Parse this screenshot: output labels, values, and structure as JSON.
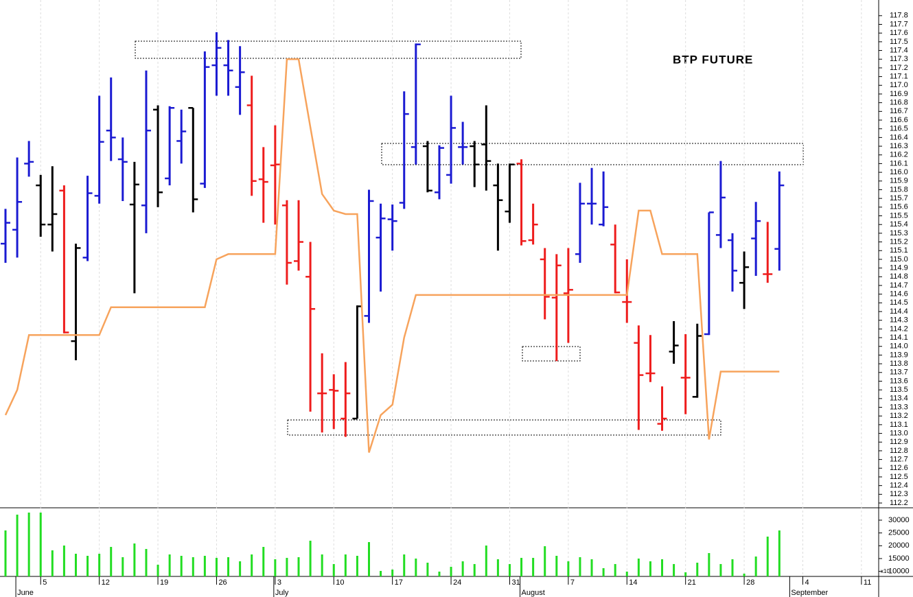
{
  "chart_data": [
    {
      "type": "ohlc",
      "title": "BTP FUTURE",
      "open": [
        115.18,
        115.34,
        116.1,
        115.85,
        115.4,
        115.79,
        114.06,
        115.02,
        115.73,
        116.48,
        116.15,
        115.63,
        115.62,
        116.72,
        115.93,
        116.36,
        116.74,
        115.87,
        117.23,
        117.23,
        116.98,
        116.77,
        115.92,
        116.08,
        115.62,
        114.98,
        114.8,
        113.46,
        113.5,
        113.17,
        113.17,
        114.35,
        115.25,
        115.46,
        115.65,
        116.29,
        116.3,
        115.77,
        115.97,
        116.29,
        116.3,
        116.32,
        115.85,
        115.55,
        116.1,
        115.22,
        115.0,
        114.56,
        114.61,
        115.06,
        115.64,
        115.4,
        115.17,
        114.51,
        114.04,
        113.69,
        113.11,
        113.94,
        113.64,
        113.42,
        114.14,
        115.28,
        115.22,
        114.73,
        115.24,
        114.83,
        115.12
      ],
      "high": [
        115.58,
        116.17,
        116.36,
        115.97,
        116.07,
        115.85,
        115.18,
        115.96,
        116.88,
        117.09,
        116.4,
        116.12,
        117.17,
        116.77,
        116.76,
        116.72,
        116.74,
        117.39,
        117.61,
        117.52,
        117.45,
        117.11,
        116.29,
        116.54,
        115.68,
        115.68,
        115.2,
        113.92,
        113.68,
        113.82,
        114.47,
        115.8,
        115.64,
        115.63,
        116.93,
        117.48,
        116.36,
        116.31,
        116.88,
        116.58,
        116.36,
        116.77,
        116.1,
        116.1,
        116.15,
        115.64,
        115.13,
        115.06,
        115.13,
        115.88,
        116.05,
        116.01,
        115.4,
        115.0,
        114.24,
        114.13,
        113.54,
        114.29,
        114.14,
        114.26,
        115.54,
        116.13,
        115.3,
        115.09,
        115.66,
        115.43,
        116.01
      ],
      "low": [
        114.96,
        115.02,
        115.95,
        115.26,
        115.09,
        114.15,
        113.84,
        114.98,
        115.64,
        116.13,
        115.67,
        114.61,
        115.3,
        115.6,
        115.85,
        116.1,
        115.54,
        115.82,
        116.88,
        116.88,
        116.66,
        115.73,
        115.42,
        115.4,
        114.71,
        114.87,
        113.25,
        113.01,
        113.05,
        112.96,
        113.17,
        114.27,
        114.63,
        115.1,
        115.58,
        116.09,
        115.77,
        115.69,
        115.87,
        116.09,
        115.83,
        115.79,
        115.1,
        115.42,
        115.16,
        115.17,
        114.31,
        113.83,
        114.04,
        114.96,
        115.4,
        115.38,
        114.61,
        114.27,
        113.04,
        113.59,
        113.03,
        113.8,
        113.22,
        113.41,
        114.13,
        115.13,
        114.63,
        114.43,
        114.81,
        114.73,
        114.87
      ],
      "close": [
        115.42,
        115.66,
        116.12,
        115.4,
        115.52,
        114.16,
        115.13,
        115.76,
        116.35,
        116.4,
        116.12,
        115.86,
        116.48,
        115.77,
        116.74,
        116.47,
        115.69,
        117.21,
        117.43,
        117.17,
        117.15,
        115.9,
        115.89,
        116.09,
        114.96,
        115.2,
        114.43,
        113.46,
        113.49,
        113.46,
        114.46,
        115.67,
        115.47,
        115.44,
        116.67,
        117.47,
        115.79,
        116.28,
        116.51,
        116.29,
        116.09,
        116.13,
        115.68,
        116.09,
        115.21,
        115.4,
        114.57,
        114.93,
        114.65,
        115.64,
        115.64,
        115.6,
        114.62,
        114.51,
        113.67,
        113.69,
        113.17,
        114.01,
        113.64,
        114.12,
        115.54,
        115.71,
        114.87,
        114.91,
        115.44,
        114.83,
        115.85
      ],
      "colors": [
        "#1a1ad2",
        "#1a1ad2",
        "#1a1ad2",
        "#000000",
        "#000000",
        "#ee1c1c",
        "#000000",
        "#1a1ad2",
        "#1a1ad2",
        "#1a1ad2",
        "#1a1ad2",
        "#000000",
        "#1a1ad2",
        "#000000",
        "#1a1ad2",
        "#1a1ad2",
        "#000000",
        "#1a1ad2",
        "#1a1ad2",
        "#1a1ad2",
        "#1a1ad2",
        "#ee1c1c",
        "#ee1c1c",
        "#ee1c1c",
        "#ee1c1c",
        "#ee1c1c",
        "#ee1c1c",
        "#ee1c1c",
        "#ee1c1c",
        "#ee1c1c",
        "#000000",
        "#1a1ad2",
        "#1a1ad2",
        "#1a1ad2",
        "#1a1ad2",
        "#1a1ad2",
        "#000000",
        "#1a1ad2",
        "#1a1ad2",
        "#1a1ad2",
        "#000000",
        "#000000",
        "#000000",
        "#000000",
        "#ee1c1c",
        "#ee1c1c",
        "#ee1c1c",
        "#ee1c1c",
        "#ee1c1c",
        "#1a1ad2",
        "#1a1ad2",
        "#1a1ad2",
        "#ee1c1c",
        "#ee1c1c",
        "#ee1c1c",
        "#ee1c1c",
        "#ee1c1c",
        "#000000",
        "#ee1c1c",
        "#000000",
        "#1a1ad2",
        "#1a1ad2",
        "#1a1ad2",
        "#000000",
        "#1a1ad2",
        "#ee1c1c",
        "#1a1ad2"
      ],
      "overlay": {
        "type": "line",
        "color": "#f7a35c",
        "values": [
          113.21,
          113.5,
          114.13,
          114.13,
          114.13,
          114.13,
          114.13,
          114.13,
          114.13,
          114.45,
          114.45,
          114.45,
          114.45,
          114.45,
          114.45,
          114.45,
          114.45,
          114.45,
          115.0,
          115.06,
          115.06,
          115.06,
          115.06,
          115.06,
          117.3,
          117.3,
          116.52,
          115.75,
          115.56,
          115.52,
          115.52,
          112.78,
          113.21,
          113.33,
          114.1,
          114.59,
          114.59,
          114.59,
          114.59,
          114.59,
          114.59,
          114.59,
          114.59,
          114.59,
          114.59,
          114.59,
          114.59,
          114.59,
          114.59,
          114.59,
          114.59,
          114.59,
          114.59,
          114.59,
          115.56,
          115.56,
          115.06,
          115.06,
          115.06,
          115.06,
          112.93,
          113.71,
          113.71,
          113.71,
          113.71,
          113.71,
          113.71
        ]
      },
      "xlim": [
        -0.468,
        74.47
      ],
      "xticks": [
        {
          "value": 3,
          "label": "5"
        },
        {
          "value": 8,
          "label": "12"
        },
        {
          "value": 13,
          "label": "19"
        },
        {
          "value": 18,
          "label": "26"
        },
        {
          "value": 23,
          "label": "3"
        },
        {
          "value": 28,
          "label": "10"
        },
        {
          "value": 33,
          "label": "17"
        },
        {
          "value": 38,
          "label": "24"
        },
        {
          "value": 43,
          "label": "31"
        },
        {
          "value": 48,
          "label": "7"
        },
        {
          "value": 53,
          "label": "14"
        },
        {
          "value": 58,
          "label": "21"
        },
        {
          "value": 63,
          "label": "28"
        },
        {
          "value": 68,
          "label": "4"
        },
        {
          "value": 73,
          "label": "11"
        }
      ],
      "month_ticks": [
        {
          "value": 1,
          "label": "June"
        },
        {
          "value": 23,
          "label": "July"
        },
        {
          "value": 44,
          "label": "August"
        },
        {
          "value": 67,
          "label": "September"
        }
      ],
      "ylim": [
        112.145,
        117.98
      ],
      "yticks": [
        112.2,
        112.3,
        112.4,
        112.5,
        112.6,
        112.7,
        112.8,
        112.9,
        {
          "value": 113,
          "label": "113.0"
        },
        113.1,
        113.2,
        113.3,
        113.4,
        113.5,
        113.6,
        113.7,
        113.8,
        113.9,
        {
          "value": 114,
          "label": "114.0"
        },
        114.1,
        114.2,
        114.3,
        114.4,
        114.5,
        114.6,
        114.7,
        114.8,
        114.9,
        {
          "value": 115,
          "label": "115.0"
        },
        115.1,
        115.2,
        115.3,
        115.4,
        115.5,
        115.6,
        115.7,
        115.8,
        115.9,
        {
          "value": 116,
          "label": "116.0"
        },
        116.1,
        116.2,
        116.3,
        116.4,
        116.5,
        116.6,
        116.7,
        116.8,
        116.9,
        {
          "value": 117,
          "label": "117.0"
        },
        117.1,
        117.2,
        117.3,
        117.4,
        117.5,
        117.6,
        117.7,
        117.8
      ],
      "grid": true
    },
    {
      "type": "bar",
      "color": "#22dd22",
      "values": [
        25980,
        32150,
        32950,
        32950,
        18210,
        20090,
        16880,
        16070,
        16880,
        19550,
        15540,
        20890,
        18750,
        12590,
        16610,
        16070,
        15540,
        16070,
        15270,
        15540,
        13930,
        16610,
        19550,
        14730,
        15270,
        15540,
        21970,
        16610,
        12860,
        16610,
        16070,
        21430,
        10180,
        10710,
        16610,
        15000,
        13390,
        9910,
        11790,
        13930,
        12860,
        20090,
        14730,
        12860,
        15270,
        15270,
        19820,
        16070,
        13930,
        15540,
        14730,
        11250,
        12860,
        9910,
        15000,
        13930,
        14730,
        12860,
        9640,
        13390,
        17140,
        12860,
        14730,
        9110,
        15800,
        23570,
        25980
      ],
      "ylim": [
        8030,
        34820
      ],
      "yticks": [
        10000,
        15000,
        20000,
        25000,
        30000
      ],
      "axis_note": "x10"
    }
  ]
}
